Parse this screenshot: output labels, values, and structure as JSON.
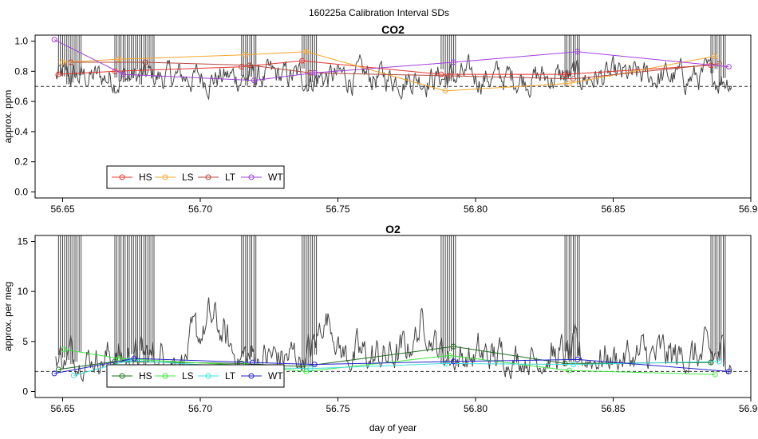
{
  "page_title": "160225a   Calibration Interval SDs",
  "chart_data": [
    {
      "type": "line",
      "title": "CO2",
      "ylabel": "approx. ppm",
      "xlabel": "",
      "xlim": [
        56.64,
        56.9
      ],
      "ylim": [
        -0.04,
        1.04
      ],
      "xticks": [
        56.65,
        56.7,
        56.75,
        56.8,
        56.85,
        56.9
      ],
      "xtick_labels": [
        "56.65",
        "56.70",
        "56.75",
        "56.80",
        "56.85",
        "56.90"
      ],
      "yticks": [
        0.0,
        0.2,
        0.4,
        0.6,
        0.8,
        1.0
      ],
      "ytick_labels": [
        "0.0",
        "0.2",
        "0.4",
        "0.6",
        "0.8",
        "1.0"
      ],
      "reference_line": 0.7,
      "legend": [
        "HS",
        "LS",
        "LT",
        "WT"
      ],
      "colors": {
        "HS": "#e8352e",
        "LS": "#f4a62a",
        "LT": "#b5493e",
        "WT": "#a33ee0",
        "trace": "#454545",
        "ref": "#333333"
      },
      "spike_times": [
        56.6485,
        56.65,
        56.6515,
        56.653,
        56.6545,
        56.656,
        56.669,
        56.6705,
        56.672,
        56.6735,
        56.675,
        56.6765,
        56.678,
        56.6795,
        56.681,
        56.6825,
        56.715,
        56.7165,
        56.718,
        56.7195,
        56.737,
        56.7385,
        56.74,
        56.7415,
        56.7875,
        56.789,
        56.7905,
        56.792,
        56.8325,
        56.834,
        56.8355,
        56.837,
        56.8855,
        56.887,
        56.8885,
        56.89
      ],
      "trace_baseline": 0.76,
      "series": [
        {
          "name": "HS",
          "x": [
            56.6485,
            56.669,
            56.715,
            56.737,
            56.7875,
            56.8325,
            56.8855
          ],
          "y": [
            0.78,
            0.8,
            0.83,
            0.87,
            0.78,
            0.78,
            0.84
          ]
        },
        {
          "name": "LS",
          "x": [
            56.65,
            56.6705,
            56.7165,
            56.7385,
            56.789,
            56.834,
            56.887
          ],
          "y": [
            0.86,
            0.88,
            0.91,
            0.93,
            0.67,
            0.72,
            0.9
          ]
        },
        {
          "name": "LT",
          "x": [
            56.653,
            56.68,
            56.718,
            56.74,
            56.7905,
            56.8355,
            56.8885
          ],
          "y": [
            0.86,
            0.86,
            0.84,
            0.79,
            0.77,
            0.75,
            0.85
          ]
        },
        {
          "name": "WT",
          "x": [
            56.647,
            56.672,
            56.7195,
            56.7415,
            56.792,
            56.837,
            56.892
          ],
          "y": [
            1.01,
            0.78,
            0.74,
            0.79,
            0.86,
            0.93,
            0.83
          ]
        }
      ]
    },
    {
      "type": "line",
      "title": "O2",
      "ylabel": "approx. per meg",
      "xlabel": "day of year",
      "xlim": [
        56.64,
        56.9
      ],
      "ylim": [
        -0.6,
        15.6
      ],
      "xticks": [
        56.65,
        56.7,
        56.75,
        56.8,
        56.85,
        56.9
      ],
      "xtick_labels": [
        "56.65",
        "56.70",
        "56.75",
        "56.80",
        "56.85",
        "56.90"
      ],
      "yticks": [
        0,
        5,
        10,
        15
      ],
      "ytick_labels": [
        "0",
        "5",
        "10",
        "15"
      ],
      "reference_line": 2.0,
      "legend": [
        "HS",
        "LS",
        "LT",
        "WT"
      ],
      "colors": {
        "HS": "#1e6b1e",
        "LS": "#3ee83e",
        "LT": "#3fe0e0",
        "WT": "#2222cc",
        "trace": "#454545",
        "ref": "#333333"
      },
      "spike_times": [
        56.6485,
        56.65,
        56.6515,
        56.653,
        56.6545,
        56.656,
        56.669,
        56.6705,
        56.672,
        56.6735,
        56.675,
        56.6765,
        56.678,
        56.6795,
        56.681,
        56.6825,
        56.715,
        56.7165,
        56.718,
        56.7195,
        56.737,
        56.7385,
        56.74,
        56.7415,
        56.7875,
        56.789,
        56.7905,
        56.792,
        56.8325,
        56.834,
        56.8355,
        56.837,
        56.8855,
        56.887,
        56.8885,
        56.89
      ],
      "trace_baseline": 3.2,
      "series": [
        {
          "name": "HS",
          "x": [
            56.6485,
            56.669,
            56.715,
            56.737,
            56.792,
            56.8325,
            56.8855
          ],
          "y": [
            2.2,
            3.0,
            2.8,
            2.5,
            4.5,
            2.8,
            2.9
          ]
        },
        {
          "name": "LS",
          "x": [
            56.6505,
            56.6705,
            56.7165,
            56.7385,
            56.7905,
            56.834,
            56.887
          ],
          "y": [
            4.2,
            3.3,
            2.6,
            2.0,
            3.6,
            2.1,
            1.7
          ]
        },
        {
          "name": "LT",
          "x": [
            56.654,
            56.674,
            56.718,
            56.74,
            56.789,
            56.8355,
            56.8885
          ],
          "y": [
            1.6,
            3.1,
            2.4,
            2.3,
            2.8,
            2.7,
            3.0
          ]
        },
        {
          "name": "WT",
          "x": [
            56.647,
            56.676,
            56.719,
            56.7415,
            56.792,
            56.837,
            56.892
          ],
          "y": [
            1.8,
            3.3,
            2.9,
            2.7,
            3.0,
            3.2,
            2.0
          ]
        }
      ]
    }
  ]
}
